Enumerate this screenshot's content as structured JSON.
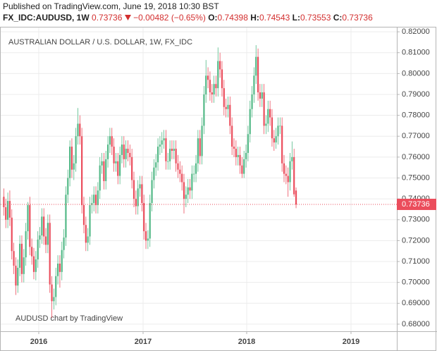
{
  "header": {
    "published": "Published on TradingView.com, June 19, 2018 10:30 BST",
    "symbol": "FX_IDC:AUDUSD, 1W",
    "change": "−0.00482 (−0.65%)",
    "open_label": "O:",
    "high_label": "H:",
    "low_label": "L:",
    "close_label": "C:"
  },
  "chart_data": {
    "type": "candlestick",
    "title": "AUSTRALIAN DOLLAR / U.S. DOLLAR, 1W, FX_IDC",
    "watermark": "AUDUSD chart by TradingView",
    "up_color": "#53b987",
    "down_color": "#eb4d5c",
    "grid": true,
    "ylim": [
      0.6766,
      0.8224
    ],
    "yticks": [
      {
        "value": 0.68,
        "label": "0.68000"
      },
      {
        "value": 0.69,
        "label": "0.69000"
      },
      {
        "value": 0.7,
        "label": "0.70000"
      },
      {
        "value": 0.71,
        "label": "0.71000"
      },
      {
        "value": 0.72,
        "label": "0.72000"
      },
      {
        "value": 0.73,
        "label": "0.73000"
      },
      {
        "value": 0.74,
        "label": "0.74000"
      },
      {
        "value": 0.75,
        "label": "0.75000"
      },
      {
        "value": 0.76,
        "label": "0.76000"
      },
      {
        "value": 0.77,
        "label": "0.77000"
      },
      {
        "value": 0.78,
        "label": "0.78000"
      },
      {
        "value": 0.79,
        "label": "0.79000"
      },
      {
        "value": 0.8,
        "label": "0.80000"
      },
      {
        "value": 0.81,
        "label": "0.81000"
      },
      {
        "value": 0.82,
        "label": "0.82000"
      }
    ],
    "xtick_labels": [
      "2016",
      "2017",
      "2018",
      "2019"
    ],
    "open": [
      0.741,
      0.736,
      0.73,
      0.739,
      0.731,
      0.715,
      0.708,
      0.6985,
      0.707,
      0.7185,
      0.704,
      0.712,
      0.7245,
      0.737,
      0.717,
      0.7125,
      0.705,
      0.711,
      0.7205,
      0.7225,
      0.7315,
      0.722,
      0.718,
      0.7285,
      0.699,
      0.691,
      0.693,
      0.703,
      0.709,
      0.705,
      0.7155,
      0.7215,
      0.742,
      0.75,
      0.765,
      0.754,
      0.757,
      0.77,
      0.776,
      0.77,
      0.737,
      0.7275,
      0.719,
      0.722,
      0.737,
      0.738,
      0.742,
      0.737,
      0.744,
      0.756,
      0.758,
      0.7485,
      0.759,
      0.766,
      0.77,
      0.765,
      0.757,
      0.758,
      0.751,
      0.761,
      0.766,
      0.759,
      0.764,
      0.762,
      0.76,
      0.749,
      0.74,
      0.7365,
      0.745,
      0.747,
      0.738,
      0.7245,
      0.72,
      0.721,
      0.738,
      0.749,
      0.755,
      0.7575,
      0.765,
      0.766,
      0.768,
      0.769,
      0.758,
      0.758,
      0.764,
      0.763,
      0.764,
      0.757,
      0.754,
      0.752,
      0.748,
      0.74,
      0.742,
      0.7455,
      0.744,
      0.752,
      0.752,
      0.757,
      0.769,
      0.7605,
      0.775,
      0.79,
      0.799,
      0.797,
      0.791,
      0.79,
      0.795,
      0.793,
      0.806,
      0.802,
      0.793,
      0.784,
      0.783,
      0.785,
      0.775,
      0.765,
      0.764,
      0.76,
      0.761,
      0.756,
      0.752,
      0.759,
      0.762,
      0.771,
      0.783,
      0.79,
      0.799,
      0.808,
      0.791,
      0.788,
      0.791,
      0.775,
      0.776,
      0.783,
      0.779,
      0.769,
      0.767,
      0.77,
      0.775,
      0.775,
      0.757,
      0.752,
      0.751,
      0.748,
      0.758,
      0.76,
      0.74398
    ],
    "high": [
      0.745,
      0.74,
      0.743,
      0.744,
      0.735,
      0.719,
      0.712,
      0.711,
      0.7225,
      0.7225,
      0.716,
      0.7285,
      0.7385,
      0.741,
      0.721,
      0.7165,
      0.715,
      0.7245,
      0.7265,
      0.7355,
      0.7355,
      0.726,
      0.7325,
      0.7325,
      0.703,
      0.697,
      0.707,
      0.713,
      0.713,
      0.7195,
      0.7255,
      0.746,
      0.754,
      0.768,
      0.769,
      0.761,
      0.774,
      0.7835,
      0.78,
      0.774,
      0.741,
      0.7315,
      0.726,
      0.741,
      0.742,
      0.746,
      0.746,
      0.748,
      0.76,
      0.762,
      0.762,
      0.763,
      0.77,
      0.774,
      0.774,
      0.769,
      0.762,
      0.762,
      0.765,
      0.77,
      0.77,
      0.768,
      0.768,
      0.766,
      0.764,
      0.753,
      0.744,
      0.749,
      0.751,
      0.751,
      0.742,
      0.7285,
      0.725,
      0.742,
      0.753,
      0.759,
      0.7615,
      0.769,
      0.77,
      0.772,
      0.773,
      0.773,
      0.762,
      0.768,
      0.768,
      0.768,
      0.768,
      0.761,
      0.758,
      0.756,
      0.752,
      0.746,
      0.7495,
      0.7495,
      0.756,
      0.756,
      0.761,
      0.773,
      0.773,
      0.779,
      0.794,
      0.8065,
      0.803,
      0.801,
      0.795,
      0.799,
      0.799,
      0.8125,
      0.81,
      0.806,
      0.797,
      0.788,
      0.789,
      0.789,
      0.779,
      0.769,
      0.768,
      0.765,
      0.765,
      0.76,
      0.763,
      0.766,
      0.775,
      0.787,
      0.794,
      0.803,
      0.8136,
      0.812,
      0.795,
      0.795,
      0.795,
      0.78,
      0.787,
      0.787,
      0.783,
      0.773,
      0.774,
      0.779,
      0.779,
      0.779,
      0.761,
      0.756,
      0.755,
      0.762,
      0.7675,
      0.764,
      0.74543
    ],
    "low": [
      0.732,
      0.726,
      0.726,
      0.727,
      0.711,
      0.704,
      0.694,
      0.695,
      0.703,
      0.7,
      0.7,
      0.708,
      0.7205,
      0.713,
      0.7085,
      0.7015,
      0.701,
      0.707,
      0.7165,
      0.7185,
      0.718,
      0.714,
      0.714,
      0.695,
      0.683,
      0.687,
      0.689,
      0.699,
      0.6975,
      0.701,
      0.7115,
      0.7175,
      0.738,
      0.746,
      0.75,
      0.749,
      0.753,
      0.766,
      0.766,
      0.733,
      0.7235,
      0.715,
      0.715,
      0.718,
      0.733,
      0.734,
      0.733,
      0.733,
      0.74,
      0.752,
      0.7445,
      0.7445,
      0.755,
      0.762,
      0.761,
      0.753,
      0.753,
      0.747,
      0.747,
      0.757,
      0.755,
      0.755,
      0.758,
      0.756,
      0.745,
      0.736,
      0.7325,
      0.7325,
      0.741,
      0.734,
      0.7205,
      0.716,
      0.716,
      0.717,
      0.734,
      0.745,
      0.751,
      0.7535,
      0.761,
      0.762,
      0.764,
      0.754,
      0.754,
      0.754,
      0.759,
      0.759,
      0.753,
      0.75,
      0.748,
      0.744,
      0.733,
      0.736,
      0.738,
      0.74,
      0.74,
      0.748,
      0.748,
      0.753,
      0.7565,
      0.7565,
      0.771,
      0.786,
      0.793,
      0.787,
      0.786,
      0.786,
      0.789,
      0.789,
      0.798,
      0.789,
      0.78,
      0.779,
      0.779,
      0.771,
      0.761,
      0.76,
      0.756,
      0.756,
      0.752,
      0.75,
      0.75,
      0.755,
      0.758,
      0.767,
      0.779,
      0.786,
      0.795,
      0.787,
      0.784,
      0.784,
      0.771,
      0.771,
      0.772,
      0.775,
      0.765,
      0.763,
      0.764,
      0.766,
      0.771,
      0.753,
      0.748,
      0.747,
      0.741,
      0.744,
      0.754,
      0.741,
      0.73553
    ],
    "close": [
      0.736,
      0.73,
      0.739,
      0.731,
      0.715,
      0.708,
      0.6985,
      0.707,
      0.7185,
      0.704,
      0.712,
      0.7245,
      0.737,
      0.717,
      0.7125,
      0.705,
      0.711,
      0.7205,
      0.7225,
      0.7315,
      0.722,
      0.718,
      0.7285,
      0.699,
      0.691,
      0.693,
      0.703,
      0.709,
      0.705,
      0.7155,
      0.7215,
      0.742,
      0.75,
      0.765,
      0.754,
      0.757,
      0.77,
      0.776,
      0.77,
      0.737,
      0.7275,
      0.719,
      0.722,
      0.737,
      0.738,
      0.742,
      0.737,
      0.744,
      0.756,
      0.758,
      0.7485,
      0.759,
      0.766,
      0.77,
      0.765,
      0.757,
      0.758,
      0.751,
      0.761,
      0.766,
      0.759,
      0.764,
      0.762,
      0.76,
      0.749,
      0.74,
      0.7365,
      0.745,
      0.747,
      0.738,
      0.7245,
      0.72,
      0.721,
      0.738,
      0.749,
      0.755,
      0.7575,
      0.765,
      0.766,
      0.768,
      0.769,
      0.758,
      0.758,
      0.764,
      0.763,
      0.764,
      0.757,
      0.754,
      0.752,
      0.748,
      0.74,
      0.742,
      0.7455,
      0.744,
      0.752,
      0.752,
      0.757,
      0.769,
      0.7605,
      0.775,
      0.79,
      0.799,
      0.797,
      0.791,
      0.79,
      0.795,
      0.793,
      0.806,
      0.802,
      0.793,
      0.784,
      0.783,
      0.785,
      0.775,
      0.765,
      0.764,
      0.76,
      0.761,
      0.756,
      0.752,
      0.759,
      0.762,
      0.771,
      0.783,
      0.79,
      0.799,
      0.808,
      0.791,
      0.788,
      0.791,
      0.775,
      0.776,
      0.783,
      0.779,
      0.769,
      0.767,
      0.77,
      0.775,
      0.775,
      0.757,
      0.752,
      0.751,
      0.748,
      0.758,
      0.76,
      0.74218,
      0.73736
    ]
  }
}
